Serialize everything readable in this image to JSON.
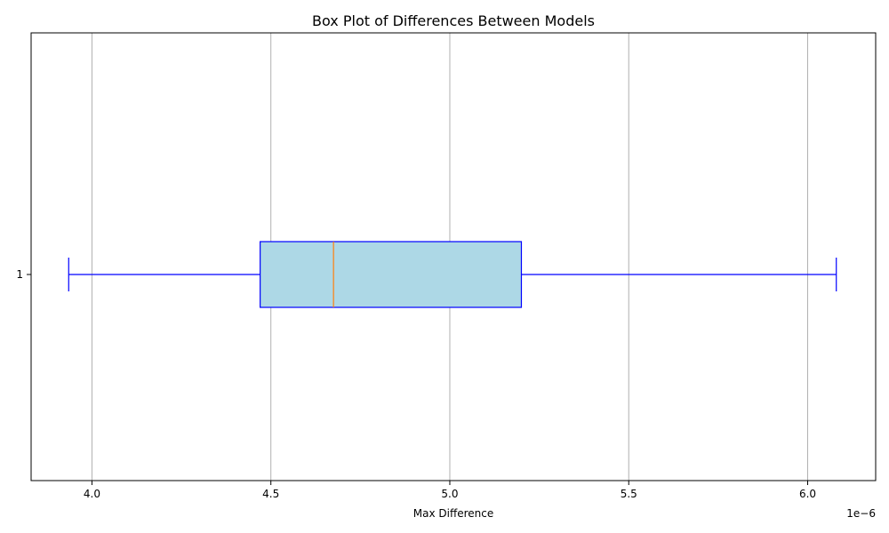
{
  "chart_data": {
    "type": "box",
    "orientation": "horizontal",
    "title": "Box Plot of Differences Between Models",
    "xlabel": "Max Difference",
    "ylabel": "",
    "x_scale_label": "1e−6",
    "xlim": [
      3.83,
      6.19
    ],
    "x_ticks": [
      4.0,
      4.5,
      5.0,
      5.5,
      6.0
    ],
    "x_tick_labels": [
      "4.0",
      "4.5",
      "5.0",
      "5.5",
      "6.0"
    ],
    "y_ticks": [
      "1"
    ],
    "grid": true,
    "boxes": [
      {
        "label": "1",
        "whisker_low": 3.935,
        "q1": 4.47,
        "median": 4.675,
        "q3": 5.2,
        "whisker_high": 6.08
      }
    ],
    "colors": {
      "box_fill": "#add8e6",
      "box_edge": "#0000ff",
      "median": "#ff7f0e",
      "grid": "#b0b0b0"
    }
  }
}
